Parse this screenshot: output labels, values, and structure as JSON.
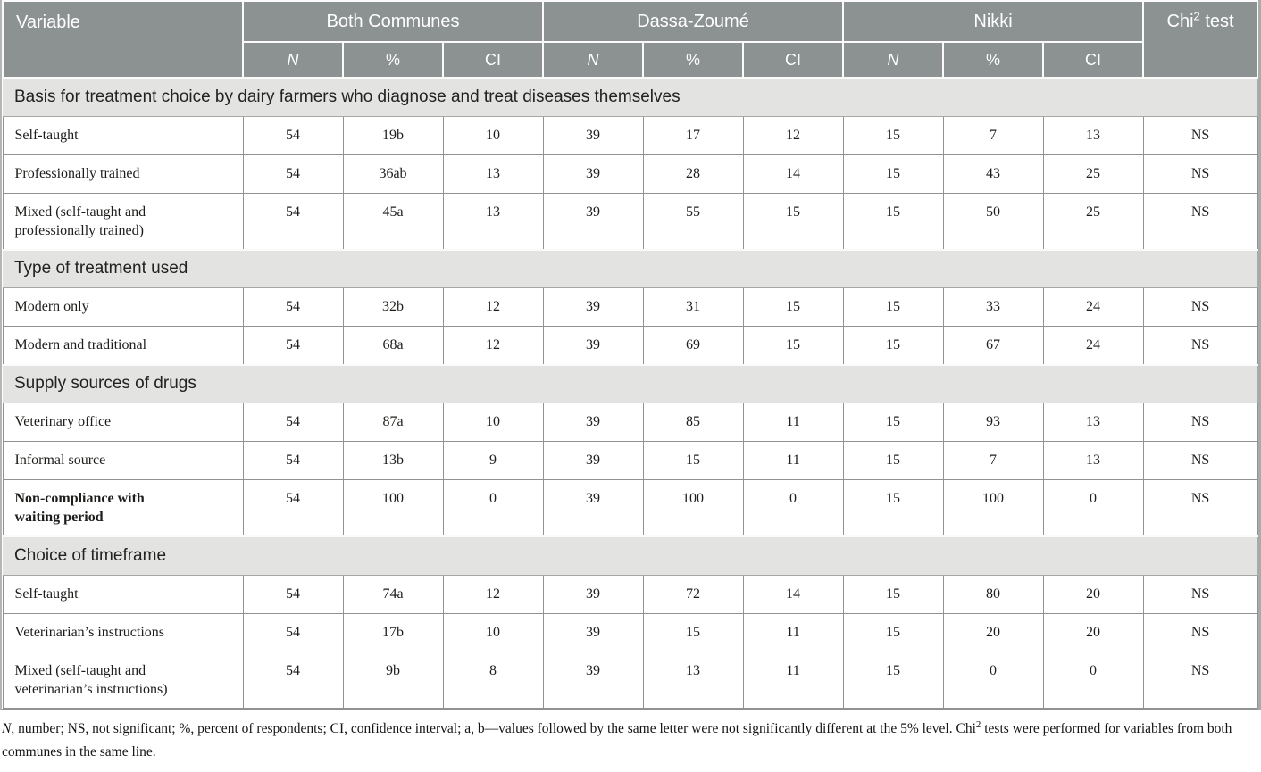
{
  "colors": {
    "header_bg": "#8c9192",
    "section_bg": "#e3e3e1",
    "grid_line": "#929292",
    "header_text": "#ffffff"
  },
  "table": {
    "header": {
      "variable_label": "Variable",
      "groups": [
        {
          "label": "Both Communes",
          "cols": [
            "N",
            "%",
            "CI"
          ]
        },
        {
          "label": "Dassa-Zoumé",
          "cols": [
            "N",
            "%",
            "CI"
          ]
        },
        {
          "label": "Nikki",
          "cols": [
            "N",
            "%",
            "CI"
          ]
        }
      ],
      "chi": {
        "base": "Chi",
        "sup": "2",
        "rest": " test"
      }
    },
    "sections": [
      {
        "title": "Basis for treatment choice by dairy farmers who diagnose and treat diseases themselves",
        "rows": [
          {
            "label": "Self-taught",
            "bold": false,
            "values": [
              "54",
              "19b",
              "10",
              "39",
              "17",
              "12",
              "15",
              "7",
              "13",
              "NS"
            ]
          },
          {
            "label": "Professionally trained",
            "bold": false,
            "values": [
              "54",
              "36ab",
              "13",
              "39",
              "28",
              "14",
              "15",
              "43",
              "25",
              "NS"
            ]
          },
          {
            "label": "Mixed (self-taught and\nprofessionally trained)",
            "bold": false,
            "values": [
              "54",
              "45a",
              "13",
              "39",
              "55",
              "15",
              "15",
              "50",
              "25",
              "NS"
            ]
          }
        ]
      },
      {
        "title": "Type of treatment used",
        "rows": [
          {
            "label": "Modern only",
            "bold": false,
            "values": [
              "54",
              "32b",
              "12",
              "39",
              "31",
              "15",
              "15",
              "33",
              "24",
              "NS"
            ]
          },
          {
            "label": "Modern and traditional",
            "bold": false,
            "values": [
              "54",
              "68a",
              "12",
              "39",
              "69",
              "15",
              "15",
              "67",
              "24",
              "NS"
            ]
          }
        ]
      },
      {
        "title": "Supply sources of drugs",
        "rows": [
          {
            "label": "Veterinary office",
            "bold": false,
            "values": [
              "54",
              "87a",
              "10",
              "39",
              "85",
              "11",
              "15",
              "93",
              "13",
              "NS"
            ]
          },
          {
            "label": "Informal source",
            "bold": false,
            "values": [
              "54",
              "13b",
              "9",
              "39",
              "15",
              "11",
              "15",
              "7",
              "13",
              "NS"
            ]
          },
          {
            "label": "Non-compliance with\nwaiting period",
            "bold": true,
            "values": [
              "54",
              "100",
              "0",
              "39",
              "100",
              "0",
              "15",
              "100",
              "0",
              "NS"
            ]
          }
        ]
      },
      {
        "title": "Choice of timeframe",
        "rows": [
          {
            "label": "Self-taught",
            "bold": false,
            "values": [
              "54",
              "74a",
              "12",
              "39",
              "72",
              "14",
              "15",
              "80",
              "20",
              "NS"
            ]
          },
          {
            "label": "Veterinarian’s instructions",
            "bold": false,
            "values": [
              "54",
              "17b",
              "10",
              "39",
              "15",
              "11",
              "15",
              "20",
              "20",
              "NS"
            ]
          },
          {
            "label": "Mixed (self-taught and\nveterinarian’s instructions)",
            "bold": false,
            "values": [
              "54",
              "9b",
              "8",
              "39",
              "13",
              "11",
              "15",
              "0",
              "0",
              "NS"
            ]
          }
        ]
      }
    ],
    "footnote": {
      "n_italic": "N",
      "part1": ", number; NS, not significant; %, percent of respondents; CI, confidence interval; a, b—values followed by the same letter were not significantly different at the 5% level. Chi",
      "sup": "2",
      "part2": " tests were performed for variables from both communes in the same line."
    }
  }
}
